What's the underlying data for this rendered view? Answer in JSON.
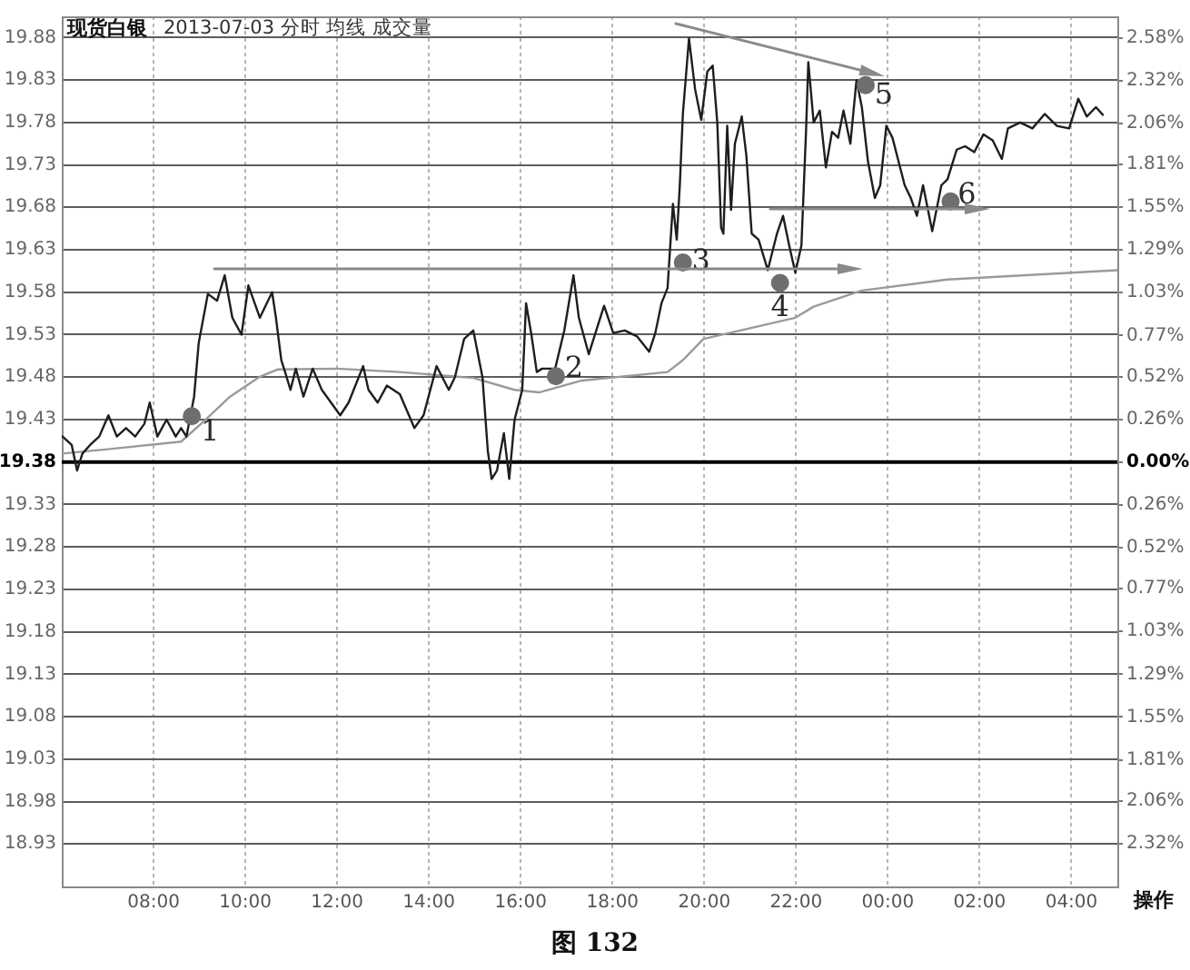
{
  "chart_data": {
    "type": "line",
    "title": "现货白银",
    "subtitle": "2013-07-03 分时 均线 成交量",
    "series": [
      {
        "color": "#1e1e1e",
        "x": [
          "2013-07-03T06:01",
          "2013-07-03T06:13",
          "2013-07-03T06:20",
          "2013-07-03T06:27",
          "2013-07-03T06:37",
          "2013-07-03T06:49",
          "2013-07-03T07:01",
          "2013-07-03T07:12",
          "2013-07-03T07:24",
          "2013-07-03T07:36",
          "2013-07-03T07:48",
          "2013-07-03T07:55",
          "2013-07-03T08:05",
          "2013-07-03T08:17",
          "2013-07-03T08:29",
          "2013-07-03T08:36",
          "2013-07-03T08:43",
          "2013-07-03T08:53",
          "2013-07-03T08:59",
          "2013-07-03T09:11",
          "2013-07-03T09:23",
          "2013-07-03T09:33",
          "2013-07-03T09:43",
          "2013-07-03T09:55",
          "2013-07-03T10:04",
          "2013-07-03T10:19",
          "2013-07-03T10:35",
          "2013-07-03T10:40",
          "2013-07-03T10:47",
          "2013-07-03T10:52",
          "2013-07-03T10:59",
          "2013-07-03T11:06",
          "2013-07-03T11:16",
          "2013-07-03T11:28",
          "2013-07-03T11:40",
          "2013-07-03T12:04",
          "2013-07-03T12:15",
          "2013-07-03T12:34",
          "2013-07-03T12:41",
          "2013-07-03T12:53",
          "2013-07-03T13:05",
          "2013-07-03T13:22",
          "2013-07-03T13:41",
          "2013-07-03T13:53",
          "2013-07-03T14:10",
          "2013-07-03T14:26",
          "2013-07-03T14:34",
          "2013-07-03T14:46",
          "2013-07-03T14:58",
          "2013-07-03T15:10",
          "2013-07-03T15:17",
          "2013-07-03T15:22",
          "2013-07-03T15:29",
          "2013-07-03T15:38",
          "2013-07-03T15:45",
          "2013-07-03T15:52",
          "2013-07-03T16:02",
          "2013-07-03T16:07",
          "2013-07-03T16:14",
          "2013-07-03T16:21",
          "2013-07-03T16:28",
          "2013-07-03T16:45",
          "2013-07-03T16:57",
          "2013-07-03T17:09",
          "2013-07-03T17:16",
          "2013-07-03T17:29",
          "2013-07-03T17:49",
          "2013-07-03T18:01",
          "2013-07-03T18:16",
          "2013-07-03T18:32",
          "2013-07-03T18:48",
          "2013-07-03T18:56",
          "2013-07-03T19:04",
          "2013-07-03T19:12",
          "2013-07-03T19:19",
          "2013-07-03T19:24",
          "2013-07-03T19:28",
          "2013-07-03T19:32",
          "2013-07-03T19:40",
          "2013-07-03T19:48",
          "2013-07-03T19:56",
          "2013-07-03T20:04",
          "2013-07-03T20:11",
          "2013-07-03T20:17",
          "2013-07-03T20:22",
          "2013-07-03T20:25",
          "2013-07-03T20:30",
          "2013-07-03T20:35",
          "2013-07-03T20:40",
          "2013-07-03T20:49",
          "2013-07-03T20:55",
          "2013-07-03T21:02",
          "2013-07-03T21:11",
          "2013-07-03T21:23",
          "2013-07-03T21:35",
          "2013-07-03T21:43",
          "2013-07-03T21:51",
          "2013-07-03T21:59",
          "2013-07-03T22:07",
          "2013-07-03T22:13",
          "2013-07-03T22:16",
          "2013-07-03T22:23",
          "2013-07-03T22:31",
          "2013-07-03T22:39",
          "2013-07-03T22:47",
          "2013-07-03T22:55",
          "2013-07-03T23:02",
          "2013-07-03T23:11",
          "2013-07-03T23:19",
          "2013-07-03T23:26",
          "2013-07-03T23:34",
          "2013-07-03T23:43",
          "2013-07-03T23:50",
          "2013-07-03T23:58",
          "2013-07-04T00:06",
          "2013-07-04T00:14",
          "2013-07-04T00:22",
          "2013-07-04T00:30",
          "2013-07-04T00:38",
          "2013-07-04T00:46",
          "2013-07-04T00:58",
          "2013-07-04T01:10",
          "2013-07-04T01:18",
          "2013-07-04T01:30",
          "2013-07-04T01:41",
          "2013-07-04T01:53",
          "2013-07-04T02:05",
          "2013-07-04T02:17",
          "2013-07-04T02:29",
          "2013-07-04T02:37",
          "2013-07-04T02:53",
          "2013-07-04T03:09",
          "2013-07-04T03:25",
          "2013-07-04T03:41",
          "2013-07-04T03:57",
          "2013-07-04T04:09",
          "2013-07-04T04:20",
          "2013-07-04T04:32",
          "2013-07-04T04:41"
        ],
        "values": [
          19.41,
          19.4,
          19.37,
          19.39,
          19.4,
          19.41,
          19.435,
          19.41,
          19.42,
          19.41,
          19.425,
          19.45,
          19.41,
          19.43,
          19.41,
          19.42,
          19.41,
          19.457,
          19.52,
          19.578,
          19.57,
          19.6,
          19.55,
          19.53,
          19.588,
          19.55,
          19.58,
          19.55,
          19.5,
          19.486,
          19.465,
          19.49,
          19.457,
          19.49,
          19.465,
          19.435,
          19.45,
          19.493,
          19.465,
          19.45,
          19.47,
          19.46,
          19.42,
          19.435,
          19.493,
          19.465,
          19.48,
          19.525,
          19.535,
          19.48,
          19.393,
          19.36,
          19.37,
          19.414,
          19.36,
          19.43,
          19.465,
          19.567,
          19.53,
          19.486,
          19.49,
          19.49,
          19.535,
          19.6,
          19.55,
          19.507,
          19.564,
          19.532,
          19.535,
          19.528,
          19.51,
          19.532,
          19.567,
          19.585,
          19.684,
          19.642,
          19.706,
          19.79,
          19.879,
          19.819,
          19.783,
          19.84,
          19.847,
          19.78,
          19.656,
          19.649,
          19.776,
          19.677,
          19.755,
          19.787,
          19.741,
          19.649,
          19.642,
          19.606,
          19.649,
          19.67,
          19.635,
          19.603,
          19.635,
          19.769,
          19.851,
          19.78,
          19.794,
          19.727,
          19.769,
          19.762,
          19.794,
          19.755,
          19.83,
          19.798,
          19.734,
          19.691,
          19.706,
          19.776,
          19.762,
          19.734,
          19.706,
          19.691,
          19.67,
          19.706,
          19.652,
          19.706,
          19.713,
          19.748,
          19.752,
          19.745,
          19.766,
          19.759,
          19.737,
          19.773,
          19.78,
          19.773,
          19.79,
          19.776,
          19.773,
          19.808,
          19.787,
          19.798,
          19.789
        ]
      },
      {
        "color": "#9a9a9a",
        "x": [
          "2013-07-03T06:01",
          "2013-07-03T07:00",
          "2013-07-03T08:36",
          "2013-07-03T09:07",
          "2013-07-03T09:40",
          "2013-07-03T10:18",
          "2013-07-03T10:42",
          "2013-07-03T12:00",
          "2013-07-03T13:22",
          "2013-07-03T14:58",
          "2013-07-03T15:52",
          "2013-07-03T16:24",
          "2013-07-03T17:20",
          "2013-07-03T19:12",
          "2013-07-03T19:32",
          "2013-07-03T19:59",
          "2013-07-03T20:47",
          "2013-07-03T21:59",
          "2013-07-03T22:23",
          "2013-07-03T23:26",
          "2013-07-04T01:18",
          "2013-07-04T05:00"
        ],
        "values": [
          19.39,
          19.395,
          19.404,
          19.429,
          19.457,
          19.48,
          19.489,
          19.49,
          19.486,
          19.479,
          19.465,
          19.462,
          19.476,
          19.486,
          19.5,
          19.525,
          19.535,
          19.55,
          19.563,
          19.582,
          19.595,
          19.606
        ]
      },
      {
        "type": "scatter",
        "color": "#6e6e6e",
        "x": [
          "2013-07-03T08:50",
          "2013-07-03T16:46",
          "2013-07-03T19:32",
          "2013-07-03T21:39",
          "2013-07-03T23:31",
          "2013-07-04T01:22"
        ],
        "values": [
          19.434,
          19.481,
          19.615,
          19.591,
          19.824,
          19.687
        ]
      }
    ],
    "xlim": [
      "2013-07-03T06:00",
      "2013-07-04T05:00"
    ],
    "xticks": [
      {
        "value": "2013-07-03T08:00",
        "label": "08:00"
      },
      {
        "value": "2013-07-03T10:00",
        "label": "10:00"
      },
      {
        "value": "2013-07-03T12:00",
        "label": "12:00"
      },
      {
        "value": "2013-07-03T14:00",
        "label": "14:00"
      },
      {
        "value": "2013-07-03T16:00",
        "label": "16:00"
      },
      {
        "value": "2013-07-03T18:00",
        "label": "18:00"
      },
      {
        "value": "2013-07-03T20:00",
        "label": "20:00"
      },
      {
        "value": "2013-07-03T22:00",
        "label": "22:00"
      },
      {
        "value": "2013-07-04T00:00",
        "label": "00:00"
      },
      {
        "value": "2013-07-04T02:00",
        "label": "02:00"
      },
      {
        "value": "2013-07-04T04:00",
        "label": "04:00"
      }
    ],
    "ylim": [
      18.88,
      19.905
    ],
    "yticks": [
      19.88,
      19.83,
      19.78,
      19.73,
      19.68,
      19.63,
      19.58,
      19.53,
      19.48,
      19.43,
      19.38,
      19.33,
      19.28,
      19.23,
      19.18,
      19.13,
      19.08,
      19.03,
      18.98,
      18.93
    ],
    "y2lim": [
      -2.58,
      2.71
    ],
    "y2ticks": [
      {
        "value": 2.58,
        "label": "2.58%"
      },
      {
        "value": 2.32,
        "label": "2.32%"
      },
      {
        "value": 2.06,
        "label": "2.06%"
      },
      {
        "value": 1.81,
        "label": "1.81%"
      },
      {
        "value": 1.55,
        "label": "1.55%"
      },
      {
        "value": 1.29,
        "label": "1.29%"
      },
      {
        "value": 1.03,
        "label": "1.03%"
      },
      {
        "value": 0.77,
        "label": "0.77%"
      },
      {
        "value": 0.52,
        "label": "0.52%"
      },
      {
        "value": 0.26,
        "label": "0.26%"
      },
      {
        "value": 0,
        "label": "0.00%"
      },
      {
        "value": -0.26,
        "label": "0.26%"
      },
      {
        "value": -0.52,
        "label": "0.52%"
      },
      {
        "value": -0.77,
        "label": "0.77%"
      },
      {
        "value": -1.03,
        "label": "1.03%"
      },
      {
        "value": -1.29,
        "label": "1.29%"
      },
      {
        "value": -1.55,
        "label": "1.55%"
      },
      {
        "value": -1.81,
        "label": "1.81%"
      },
      {
        "value": -2.06,
        "label": "2.06%"
      },
      {
        "value": -2.32,
        "label": "2.32%"
      }
    ],
    "ref_lines": [
      {
        "axis": "y",
        "value": 19.38
      }
    ],
    "grid": true,
    "annotations": [
      "操作",
      "图 132",
      {
        "text": "1",
        "x": "2013-07-03T08:50",
        "y": 19.434
      },
      {
        "text": "2",
        "x": "2013-07-03T16:46",
        "y": 19.481
      },
      {
        "text": "3",
        "x": "2013-07-03T19:32",
        "y": 19.615
      },
      {
        "text": "4",
        "x": "2013-07-03T21:39",
        "y": 19.591
      },
      {
        "text": "5",
        "x": "2013-07-03T23:31",
        "y": 19.824
      },
      {
        "text": "6",
        "x": "2013-07-04T01:22",
        "y": 19.687
      }
    ]
  }
}
